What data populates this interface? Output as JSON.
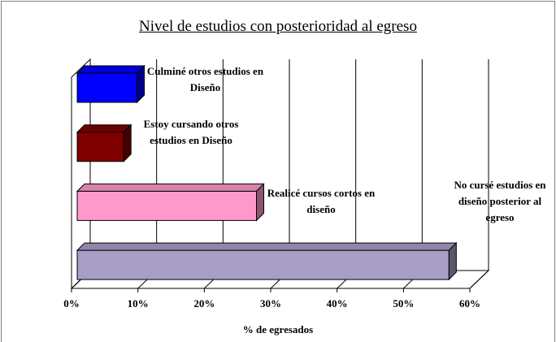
{
  "chart_data": {
    "type": "bar3d_horizontal",
    "title": "Nivel de estudios con posterioridad al egreso",
    "xlabel": "% de egresados",
    "categories": [
      "Culminé otros estudios en Diseño",
      "Estoy cursando otros estudios en Diseño",
      "Realicé cursos cortos en diseño",
      "No cursé estudios en diseño posterior al egreso"
    ],
    "values": [
      9,
      7,
      27,
      56
    ],
    "colors": [
      "#0000ff",
      "#800000",
      "#ff99cc",
      "#a89ec6"
    ],
    "xlim": [
      0,
      60
    ],
    "xticks": [
      {
        "value": 0,
        "label": "0%"
      },
      {
        "value": 10,
        "label": "10%"
      },
      {
        "value": 20,
        "label": "20%"
      },
      {
        "value": 30,
        "label": "30%"
      },
      {
        "value": 40,
        "label": "40%"
      },
      {
        "value": 50,
        "label": "50%"
      },
      {
        "value": 60,
        "label": "60%"
      }
    ],
    "grid": true
  }
}
